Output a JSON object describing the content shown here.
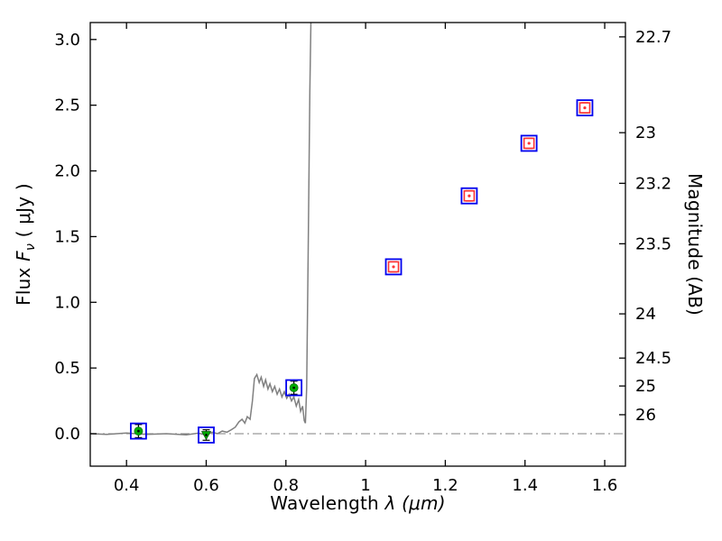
{
  "chart_data": {
    "type": "scatter",
    "title": "",
    "xlabel": {
      "prefix": "Wavelength ",
      "symbol": "λ",
      "unit": "(μm)"
    },
    "ylabel_left": {
      "prefix": "Flux ",
      "symbol": "F",
      "subscript": "ν",
      "unit": " ( μJy )"
    },
    "ylabel_right": "Magnitude (AB)",
    "xlim": [
      0.309,
      1.652
    ],
    "ylim": [
      -0.247,
      3.129
    ],
    "x_ticks": [
      "0.4",
      "0.6",
      "0.8",
      "1",
      "1.2",
      "1.4",
      "1.6"
    ],
    "y_ticks_left": [
      "0.0",
      "0.5",
      "1.0",
      "1.5",
      "2.0",
      "2.5",
      "3.0"
    ],
    "y_ticks_right": [
      "22.7",
      "23",
      "23.2",
      "23.5",
      "24",
      "24.5",
      "25",
      "26"
    ],
    "ab_zeropoint": 23.9,
    "grid": false,
    "legend": "none",
    "colors": {
      "frame": "#000000",
      "spectrum": "#808080",
      "zero_line": "#808080",
      "aperture_square": "#0000ee",
      "optical_marker": "#00aa00",
      "ir_marker": "#ff3333",
      "error_bar": "#000000",
      "background": "#ffffff"
    },
    "zero_line_y": 0,
    "spectrum_points": [
      [
        0.31,
        0.0
      ],
      [
        0.35,
        -0.005
      ],
      [
        0.4,
        0.005
      ],
      [
        0.45,
        -0.005
      ],
      [
        0.5,
        0.0
      ],
      [
        0.55,
        -0.008
      ],
      [
        0.58,
        0.004
      ],
      [
        0.6,
        -0.01
      ],
      [
        0.615,
        0.012
      ],
      [
        0.628,
        0.0
      ],
      [
        0.64,
        0.02
      ],
      [
        0.652,
        0.012
      ],
      [
        0.663,
        0.03
      ],
      [
        0.673,
        0.05
      ],
      [
        0.682,
        0.09
      ],
      [
        0.69,
        0.11
      ],
      [
        0.697,
        0.08
      ],
      [
        0.703,
        0.13
      ],
      [
        0.71,
        0.11
      ],
      [
        0.716,
        0.25
      ],
      [
        0.721,
        0.42
      ],
      [
        0.727,
        0.45
      ],
      [
        0.733,
        0.39
      ],
      [
        0.738,
        0.43
      ],
      [
        0.744,
        0.36
      ],
      [
        0.749,
        0.41
      ],
      [
        0.755,
        0.34
      ],
      [
        0.76,
        0.38
      ],
      [
        0.766,
        0.32
      ],
      [
        0.772,
        0.36
      ],
      [
        0.778,
        0.3
      ],
      [
        0.784,
        0.34
      ],
      [
        0.79,
        0.28
      ],
      [
        0.796,
        0.32
      ],
      [
        0.802,
        0.27
      ],
      [
        0.808,
        0.3
      ],
      [
        0.814,
        0.25
      ],
      [
        0.82,
        0.28
      ],
      [
        0.826,
        0.21
      ],
      [
        0.832,
        0.26
      ],
      [
        0.837,
        0.17
      ],
      [
        0.842,
        0.21
      ],
      [
        0.846,
        0.1
      ],
      [
        0.849,
        0.08
      ],
      [
        0.852,
        0.35
      ],
      [
        0.856,
        1.4
      ],
      [
        0.86,
        2.6
      ],
      [
        0.864,
        3.4
      ]
    ],
    "series": [
      {
        "name": "optical-photometry",
        "marker": "green-filled-in-blue-open-square",
        "points": [
          {
            "x": 0.43,
            "y": 0.02,
            "yerr": 0.05,
            "limit": false
          },
          {
            "x": 0.6,
            "y": -0.01,
            "yerr": 0.04,
            "limit": true
          },
          {
            "x": 0.82,
            "y": 0.35,
            "yerr": 0.05,
            "limit": false
          }
        ]
      },
      {
        "name": "infrared-photometry",
        "marker": "red-open-square-in-blue-open-square",
        "points": [
          {
            "x": 1.07,
            "y": 1.27,
            "yerr": 0.04
          },
          {
            "x": 1.26,
            "y": 1.81,
            "yerr": 0.04
          },
          {
            "x": 1.41,
            "y": 2.21,
            "yerr": 0.04
          },
          {
            "x": 1.55,
            "y": 2.48,
            "yerr": 0.04
          }
        ]
      }
    ]
  }
}
